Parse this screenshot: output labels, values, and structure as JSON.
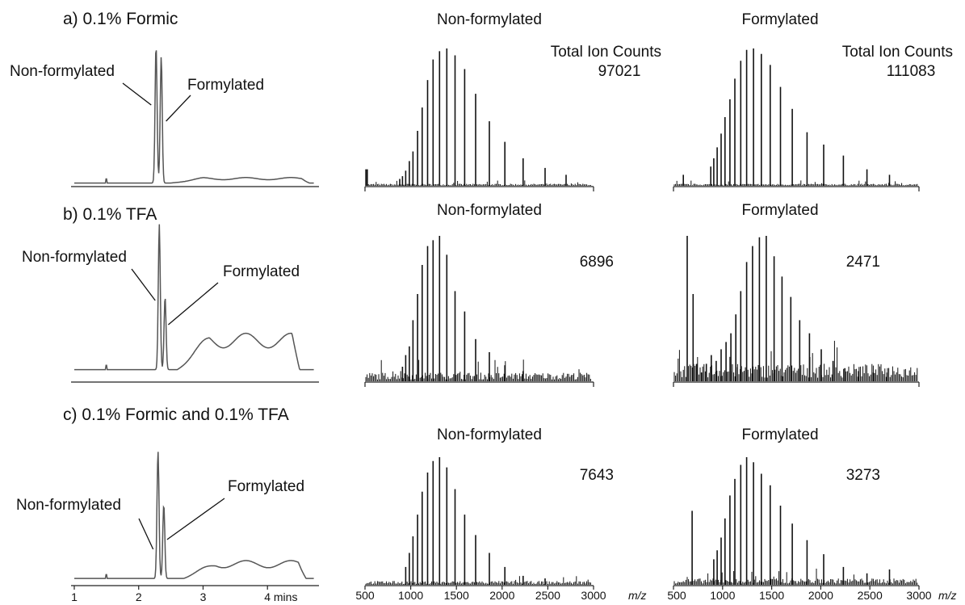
{
  "rows": [
    {
      "title": "a) 0.1% Formic",
      "chromatogram": {
        "labels": {
          "non_formylated": "Non-formylated",
          "formylated": "Formylated"
        },
        "baseline": 0.02,
        "peaks": [
          {
            "t": 2.27,
            "h": 1.0
          },
          {
            "t": 2.35,
            "h": 0.92
          }
        ],
        "plateau": {
          "from": 2.5,
          "to": 4.65,
          "level": 0.04
        }
      },
      "spectra": [
        {
          "title": "Non-formylated",
          "header": "Total Ion Counts",
          "total_ion_counts": "97021"
        },
        {
          "title": "Formylated",
          "header": "Total Ion Counts",
          "total_ion_counts": "111083"
        }
      ]
    },
    {
      "title": "b) 0.1% TFA",
      "chromatogram": {
        "labels": {
          "non_formylated": "Non-formylated",
          "formylated": "Formylated"
        },
        "baseline": 0.08,
        "peaks": [
          {
            "t": 2.32,
            "h": 1.0
          },
          {
            "t": 2.41,
            "h": 0.5
          }
        ],
        "plateau": {
          "from": 2.6,
          "to": 4.5,
          "level": 0.25
        }
      },
      "spectra": [
        {
          "title": "Non-formylated",
          "total_ion_counts": "6896"
        },
        {
          "title": "Formylated",
          "total_ion_counts": "2471"
        }
      ]
    },
    {
      "title": "c) 0.1% Formic and 0.1% TFA",
      "chromatogram": {
        "labels": {
          "non_formylated": "Non-formylated",
          "formylated": "Formylated"
        },
        "baseline": 0.05,
        "peaks": [
          {
            "t": 2.3,
            "h": 1.0
          },
          {
            "t": 2.39,
            "h": 0.58
          }
        ],
        "plateau": {
          "from": 2.7,
          "to": 4.6,
          "level": 0.14
        }
      },
      "spectra": [
        {
          "title": "Non-formylated",
          "total_ion_counts": "7643"
        },
        {
          "title": "Formylated",
          "total_ion_counts": "3273"
        }
      ]
    }
  ],
  "axes": {
    "time_ticks": [
      "1",
      "2",
      "3",
      "4 mins"
    ],
    "time_tick_values": [
      1,
      2,
      3,
      4
    ],
    "time_range": [
      0.95,
      4.8
    ],
    "mz_ticks": [
      "500",
      "1000",
      "1500",
      "2000",
      "2500",
      "3000"
    ],
    "mz_tick_values": [
      500,
      1000,
      1500,
      2000,
      2500,
      3000
    ],
    "mz_unit": "m/z",
    "mz_range": [
      500,
      3000
    ]
  },
  "chart_data": [
    {
      "type": "line",
      "title": "a) 0.1% Formic",
      "xlabel": "mins",
      "xlim": [
        0.95,
        4.8
      ]
    },
    {
      "type": "bar",
      "title": "Non-formylated",
      "xlabel": "m/z",
      "xlim": [
        500,
        3000
      ],
      "x": [
        510,
        525,
        880,
        910,
        945,
        985,
        1025,
        1075,
        1125,
        1185,
        1245,
        1315,
        1395,
        1485,
        1590,
        1710,
        1860,
        2030,
        2230,
        2470,
        2700
      ],
      "values": [
        0.12,
        0.12,
        0.05,
        0.07,
        0.11,
        0.18,
        0.25,
        0.4,
        0.57,
        0.77,
        0.92,
        0.98,
        1.0,
        0.95,
        0.85,
        0.67,
        0.47,
        0.32,
        0.2,
        0.13,
        0.08
      ],
      "annotation": "Total Ion Counts 97021"
    },
    {
      "type": "bar",
      "title": "Formylated",
      "xlabel": "m/z",
      "xlim": [
        500,
        3000
      ],
      "x": [
        600,
        880,
        910,
        945,
        985,
        1025,
        1075,
        1125,
        1185,
        1245,
        1315,
        1395,
        1485,
        1590,
        1710,
        1860,
        2030,
        2230,
        2470,
        2700
      ],
      "values": [
        0.08,
        0.14,
        0.2,
        0.28,
        0.38,
        0.5,
        0.63,
        0.78,
        0.91,
        0.99,
        1.0,
        0.96,
        0.88,
        0.72,
        0.56,
        0.39,
        0.3,
        0.22,
        0.12,
        0.08
      ],
      "annotation": "Total Ion Counts 111083"
    },
    {
      "type": "line",
      "title": "b) 0.1% TFA",
      "xlabel": "mins",
      "xlim": [
        0.95,
        4.8
      ]
    },
    {
      "type": "bar",
      "title": "Non-formylated",
      "xlabel": "m/z",
      "xlim": [
        500,
        3000
      ],
      "x": [
        910,
        945,
        985,
        1025,
        1075,
        1125,
        1185,
        1245,
        1315,
        1395,
        1485,
        1590,
        1710,
        1860,
        2030,
        2230
      ],
      "values": [
        0.1,
        0.18,
        0.24,
        0.42,
        0.6,
        0.8,
        0.93,
        0.97,
        1.0,
        0.87,
        0.62,
        0.48,
        0.29,
        0.2,
        0.11,
        0.07
      ],
      "annotation": "6896"
    },
    {
      "type": "bar",
      "title": "Formylated",
      "xlabel": "m/z",
      "xlim": [
        500,
        3000
      ],
      "x": [
        640,
        700,
        740,
        785,
        835,
        885,
        935,
        985,
        1035,
        1085,
        1135,
        1185,
        1245,
        1305,
        1375,
        1445,
        1525,
        1605,
        1695,
        1785,
        1885,
        2005,
        2125,
        2245,
        2385,
        2535,
        2675
      ],
      "values": [
        1.0,
        0.6,
        0.12,
        0.06,
        0.12,
        0.18,
        0.14,
        0.22,
        0.27,
        0.33,
        0.46,
        0.62,
        0.82,
        0.93,
        0.99,
        1.0,
        0.86,
        0.72,
        0.58,
        0.42,
        0.33,
        0.22,
        0.14,
        0.09,
        0.07,
        0.06,
        0.06
      ],
      "annotation": "2471"
    },
    {
      "type": "line",
      "title": "c) 0.1% Formic and 0.1% TFA",
      "xlabel": "mins",
      "xlim": [
        0.95,
        4.8
      ]
    },
    {
      "type": "bar",
      "title": "Non-formylated",
      "xlabel": "m/z",
      "xlim": [
        500,
        3000
      ],
      "x": [
        945,
        985,
        1025,
        1075,
        1125,
        1185,
        1245,
        1315,
        1395,
        1485,
        1590,
        1710,
        1860,
        2030,
        2230,
        2470
      ],
      "values": [
        0.14,
        0.25,
        0.38,
        0.55,
        0.73,
        0.88,
        0.97,
        1.0,
        0.92,
        0.75,
        0.55,
        0.39,
        0.25,
        0.14,
        0.07,
        0.05
      ],
      "annotation": "7643"
    },
    {
      "type": "bar",
      "title": "Formylated",
      "xlabel": "m/z",
      "xlim": [
        500,
        3000
      ],
      "x": [
        690,
        910,
        945,
        985,
        1025,
        1075,
        1125,
        1185,
        1245,
        1315,
        1395,
        1485,
        1590,
        1710,
        1860,
        2030,
        2230,
        2470,
        2700
      ],
      "values": [
        0.58,
        0.2,
        0.27,
        0.37,
        0.52,
        0.7,
        0.83,
        0.94,
        1.0,
        0.96,
        0.87,
        0.78,
        0.62,
        0.48,
        0.35,
        0.24,
        0.14,
        0.09,
        0.12
      ],
      "annotation": "3273"
    }
  ]
}
